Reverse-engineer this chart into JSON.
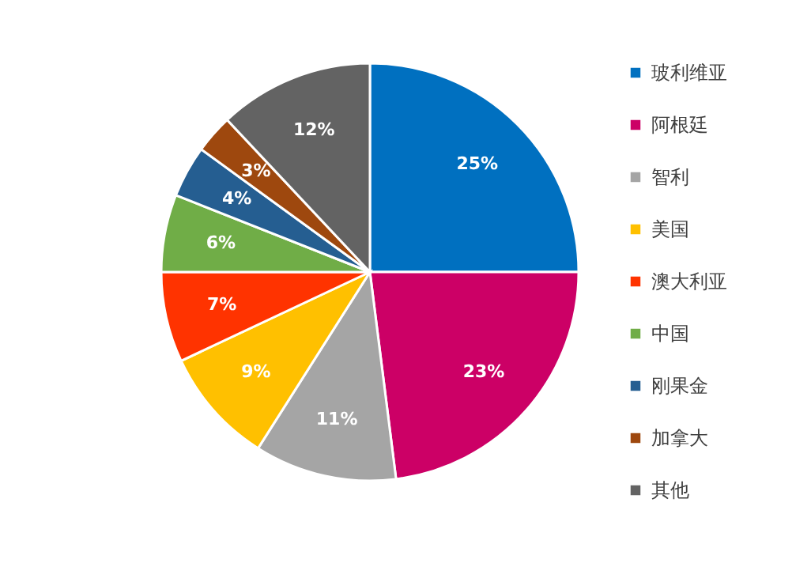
{
  "chart_data": {
    "type": "pie",
    "categories": [
      "玻利维亚",
      "阿根廷",
      "智利",
      "美国",
      "澳大利亚",
      "中国",
      "刚果金",
      "加拿大",
      "其他"
    ],
    "values": [
      25,
      23,
      11,
      9,
      7,
      6,
      4,
      3,
      12
    ],
    "colors": [
      "#0070c0",
      "#cc0066",
      "#a5a5a5",
      "#ffc000",
      "#ff3300",
      "#70ad47",
      "#255e91",
      "#9e480e",
      "#636363"
    ],
    "value_labels": [
      "25%",
      "23%",
      "11%",
      "9%",
      "7%",
      "6%",
      "4%",
      "3%",
      "12%"
    ],
    "legend": "right"
  }
}
